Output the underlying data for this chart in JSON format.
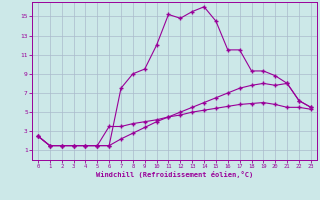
{
  "xlabel": "Windchill (Refroidissement éolien,°C)",
  "background_color": "#cce8e8",
  "grid_color": "#aabbcc",
  "line_color": "#990099",
  "xlim": [
    -0.5,
    23.5
  ],
  "ylim": [
    0,
    16.5
  ],
  "xticks": [
    0,
    1,
    2,
    3,
    4,
    5,
    6,
    7,
    8,
    9,
    10,
    11,
    12,
    13,
    14,
    15,
    16,
    17,
    18,
    19,
    20,
    21,
    22,
    23
  ],
  "yticks": [
    1,
    3,
    5,
    7,
    9,
    11,
    13,
    15
  ],
  "line1_x": [
    0,
    1,
    2,
    3,
    4,
    5,
    6,
    7,
    8,
    9,
    10,
    11,
    12,
    13,
    14,
    15,
    16,
    17,
    18,
    19,
    20,
    21,
    22,
    23
  ],
  "line1_y": [
    2.5,
    1.5,
    1.5,
    1.5,
    1.5,
    1.5,
    1.5,
    7.5,
    9.0,
    9.5,
    12.0,
    15.2,
    14.8,
    15.5,
    16.0,
    14.5,
    11.5,
    11.5,
    9.3,
    9.3,
    8.8,
    8.0,
    6.2,
    5.5
  ],
  "line2_x": [
    0,
    1,
    2,
    3,
    4,
    5,
    6,
    7,
    8,
    9,
    10,
    11,
    12,
    13,
    14,
    15,
    16,
    17,
    18,
    19,
    20,
    21,
    22,
    23
  ],
  "line2_y": [
    2.5,
    1.5,
    1.5,
    1.5,
    1.5,
    1.5,
    1.5,
    2.2,
    2.8,
    3.4,
    4.0,
    4.5,
    5.0,
    5.5,
    6.0,
    6.5,
    7.0,
    7.5,
    7.8,
    8.0,
    7.8,
    8.0,
    6.2,
    5.5
  ],
  "line3_x": [
    0,
    1,
    2,
    3,
    4,
    5,
    6,
    7,
    8,
    9,
    10,
    11,
    12,
    13,
    14,
    15,
    16,
    17,
    18,
    19,
    20,
    21,
    22,
    23
  ],
  "line3_y": [
    2.5,
    1.5,
    1.5,
    1.5,
    1.5,
    1.5,
    3.5,
    3.5,
    3.8,
    4.0,
    4.2,
    4.5,
    4.7,
    5.0,
    5.2,
    5.4,
    5.6,
    5.8,
    5.9,
    6.0,
    5.8,
    5.5,
    5.5,
    5.3
  ]
}
